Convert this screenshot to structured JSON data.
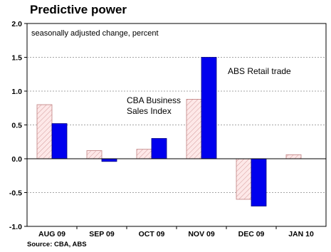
{
  "chart_data": {
    "type": "bar",
    "title": "Predictive power",
    "subtitle": "seasonally adjusted change, percent",
    "source": "Source: CBA, ABS",
    "categories": [
      "AUG 09",
      "SEP 09",
      "OCT 09",
      "NOV 09",
      "DEC 09",
      "JAN 10"
    ],
    "ylim": [
      -1.0,
      2.0
    ],
    "yticks": [
      "2.0",
      "1.5",
      "1.0",
      "0.5",
      "0.0",
      "-0.5",
      "-1.0"
    ],
    "grid": true,
    "series": [
      {
        "name": "CBA Business Sales Index",
        "label_lines": [
          "CBA Business",
          "Sales Index"
        ],
        "style": "hatched",
        "fill": "#fbe1e1",
        "stroke": "#c08080",
        "values": [
          0.8,
          0.12,
          0.14,
          0.88,
          -0.6,
          0.06
        ]
      },
      {
        "name": "ABS Retail trade",
        "label_lines": [
          "ABS Retail trade"
        ],
        "style": "solid",
        "fill": "#0000ee",
        "stroke": "#000080",
        "values": [
          0.52,
          -0.04,
          0.3,
          1.5,
          -0.7,
          null
        ]
      }
    ]
  }
}
